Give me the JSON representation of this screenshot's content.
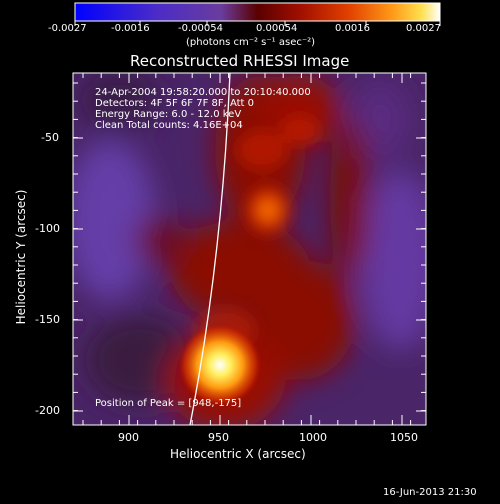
{
  "colorbar": {
    "tick_labels": [
      "-0.0027",
      "-0.0016",
      "-0.00054",
      "0.00054",
      "0.0016",
      "0.0027"
    ],
    "units_label": "(photons cm⁻² s⁻¹ asec⁻²)",
    "colors": [
      "#0000ff",
      "#4b2cc4",
      "#6a3ea2",
      "#7a2a66",
      "#5a0000",
      "#a01000",
      "#e04000",
      "#ff8a10",
      "#ffd030",
      "#ffffff"
    ]
  },
  "image": {
    "title": "Reconstructed RHESSI Image",
    "info_lines": [
      "24-Apr-2004 19:58:20.000 to 20:10:40.000",
      "Detectors: 4F 5F 6F 7F 8F, Att 0",
      "Energy Range: 6.0 - 12.0 keV",
      "Clean     Total counts: 4.16E+04"
    ],
    "peak_label": "Position of Peak = [948,-175]",
    "xlabel": "Heliocentric X (arcsec)",
    "ylabel": "Heliocentric Y (arcsec)",
    "x_ticks": [
      "900",
      "950",
      "1000",
      "1050"
    ],
    "y_ticks": [
      "-50",
      "-100",
      "-150",
      "-200"
    ],
    "timestamp": "16-Jun-2013 21:30"
  }
}
